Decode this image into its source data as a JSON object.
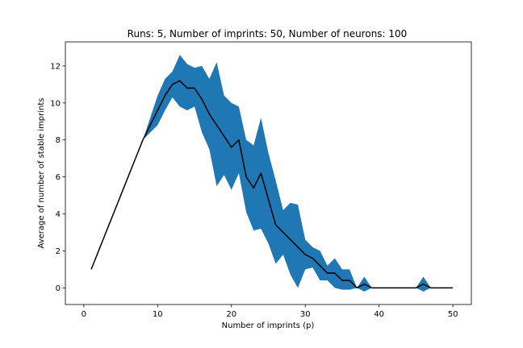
{
  "chart_data": {
    "type": "line",
    "title": "Runs: 5, Number of imprints: 50, Number of neurons: 100",
    "xlabel": "Number of imprints (p)",
    "ylabel": "Average of number of stable imprints",
    "xlim": [
      -2.5,
      52.5
    ],
    "ylim": [
      -0.9,
      13.3
    ],
    "xticks": [
      0,
      10,
      20,
      30,
      40,
      50
    ],
    "yticks": [
      0,
      2,
      4,
      6,
      8,
      10,
      12
    ],
    "grid": false,
    "colors": {
      "mean_line": "#000000",
      "band": "#1f77b4"
    },
    "x": [
      1,
      2,
      3,
      4,
      5,
      6,
      7,
      8,
      9,
      10,
      11,
      12,
      13,
      14,
      15,
      16,
      17,
      18,
      19,
      20,
      21,
      22,
      23,
      24,
      25,
      26,
      27,
      28,
      29,
      30,
      31,
      32,
      33,
      34,
      35,
      36,
      37,
      38,
      39,
      40,
      41,
      42,
      43,
      44,
      45,
      46,
      47,
      48,
      49,
      50
    ],
    "series": [
      {
        "role": "mean",
        "values": [
          1,
          2,
          3,
          4,
          5,
          6,
          7,
          8,
          8.8,
          9.6,
          10.4,
          11.0,
          11.2,
          10.8,
          10.8,
          10.2,
          9.4,
          8.8,
          8.2,
          7.6,
          8.0,
          6.0,
          5.4,
          6.2,
          4.8,
          3.4,
          3.0,
          2.6,
          2.2,
          1.8,
          1.6,
          1.2,
          0.8,
          0.8,
          0.4,
          0.4,
          0,
          0.2,
          0,
          0,
          0,
          0,
          0,
          0,
          0,
          0.2,
          0,
          0,
          0,
          0
        ]
      },
      {
        "role": "upper_band",
        "values": [
          1,
          2,
          3,
          4,
          5,
          6,
          7,
          8,
          9.2,
          10.4,
          11.3,
          11.7,
          12.6,
          12.1,
          11.9,
          12.0,
          11.3,
          12.2,
          10.4,
          10.0,
          9.8,
          8.0,
          7.7,
          9.2,
          7.3,
          5.8,
          4.2,
          4.6,
          4.5,
          2.6,
          2.2,
          2.0,
          1.2,
          1.6,
          1.0,
          1.0,
          0,
          0.6,
          0,
          0,
          0,
          0,
          0,
          0,
          0,
          0.6,
          0,
          0,
          0,
          0
        ]
      },
      {
        "role": "lower_band",
        "values": [
          1,
          2,
          3,
          4,
          5,
          6,
          7,
          8,
          8.4,
          8.8,
          9.6,
          10.3,
          9.8,
          9.6,
          9.8,
          8.4,
          7.5,
          5.5,
          6.1,
          5.3,
          6.2,
          4.1,
          3.1,
          3.2,
          2.4,
          1.3,
          1.8,
          0.7,
          0,
          1.0,
          1.1,
          0.4,
          0.4,
          0,
          -0.1,
          -0.1,
          0,
          -0.2,
          0,
          0,
          0,
          0,
          0,
          0,
          0,
          -0.2,
          0,
          0,
          0,
          0
        ]
      }
    ]
  }
}
